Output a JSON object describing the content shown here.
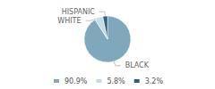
{
  "chart_data": {
    "type": "pie",
    "categories": [
      "BLACK",
      "WHITE",
      "HISPANIC"
    ],
    "values": [
      90.9,
      5.8,
      3.2
    ],
    "value_labels": [
      "90.9%",
      "5.8%",
      "3.2%"
    ],
    "colors": [
      "#7fa8bc",
      "#c5dce6",
      "#2e5f7a"
    ],
    "legend": "bottom"
  }
}
